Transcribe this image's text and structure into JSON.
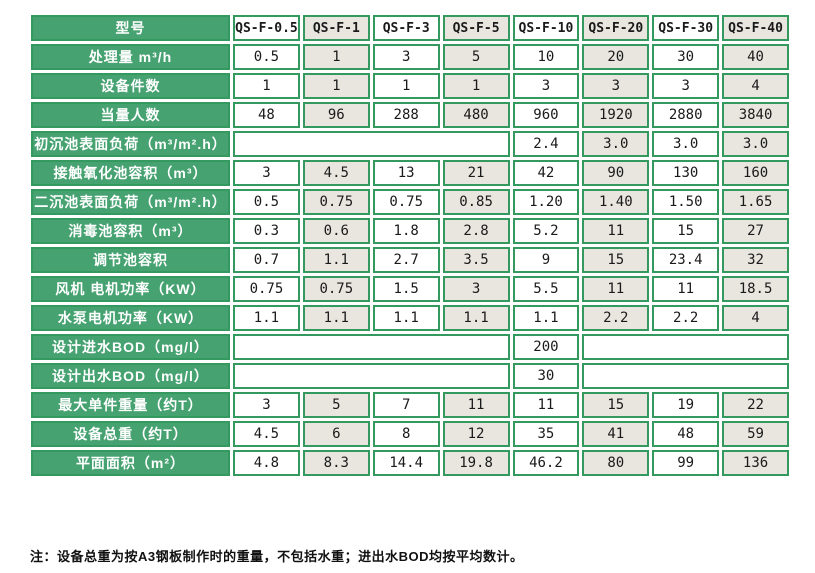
{
  "colors": {
    "green_fill": "#46a271",
    "green_border": "#33995e",
    "beige_cell": "#e9e6df",
    "white_cell": "#ffffff",
    "label_text": "#ffffff",
    "value_text": "#1a1a1a"
  },
  "table": {
    "header_label": "型号",
    "models": [
      "QS-F-0.5",
      "QS-F-1",
      "QS-F-3",
      "QS-F-5",
      "QS-F-10",
      "QS-F-20",
      "QS-F-30",
      "QS-F-40"
    ],
    "rows": [
      {
        "label": "处理量 m³/h",
        "cells": [
          {
            "t": "0.5"
          },
          {
            "t": "1"
          },
          {
            "t": "3"
          },
          {
            "t": "5"
          },
          {
            "t": "10"
          },
          {
            "t": "20"
          },
          {
            "t": "30"
          },
          {
            "t": "40"
          }
        ]
      },
      {
        "label": "设备件数",
        "cells": [
          {
            "t": "1"
          },
          {
            "t": "1"
          },
          {
            "t": "1"
          },
          {
            "t": "1"
          },
          {
            "t": "3"
          },
          {
            "t": "3"
          },
          {
            "t": "3"
          },
          {
            "t": "4"
          }
        ]
      },
      {
        "label": "当量人数",
        "cells": [
          {
            "t": "48"
          },
          {
            "t": "96"
          },
          {
            "t": "288"
          },
          {
            "t": "480"
          },
          {
            "t": "960"
          },
          {
            "t": "1920"
          },
          {
            "t": "2880"
          },
          {
            "t": "3840"
          }
        ]
      },
      {
        "label": "初沉池表面负荷（m³/m².h）",
        "cells": [
          {
            "t": "",
            "span": 4
          },
          {
            "t": "2.4"
          },
          {
            "t": "3.0"
          },
          {
            "t": "3.0"
          },
          {
            "t": "3.0"
          }
        ]
      },
      {
        "label": "接触氧化池容积（m³）",
        "cells": [
          {
            "t": "3"
          },
          {
            "t": "4.5"
          },
          {
            "t": "13"
          },
          {
            "t": "21"
          },
          {
            "t": "42"
          },
          {
            "t": "90"
          },
          {
            "t": "130"
          },
          {
            "t": "160"
          }
        ]
      },
      {
        "label": "二沉池表面负荷（m³/m².h）",
        "cells": [
          {
            "t": "0.5"
          },
          {
            "t": "0.75"
          },
          {
            "t": "0.75"
          },
          {
            "t": "0.85"
          },
          {
            "t": "1.20"
          },
          {
            "t": "1.40"
          },
          {
            "t": "1.50"
          },
          {
            "t": "1.65"
          }
        ]
      },
      {
        "label": "消毒池容积（m³）",
        "cells": [
          {
            "t": "0.3"
          },
          {
            "t": "0.6"
          },
          {
            "t": "1.8"
          },
          {
            "t": "2.8"
          },
          {
            "t": "5.2"
          },
          {
            "t": "11"
          },
          {
            "t": "15"
          },
          {
            "t": "27"
          }
        ]
      },
      {
        "label": "调节池容积",
        "cells": [
          {
            "t": "0.7"
          },
          {
            "t": "1.1"
          },
          {
            "t": "2.7"
          },
          {
            "t": "3.5"
          },
          {
            "t": "9"
          },
          {
            "t": "15"
          },
          {
            "t": "23.4"
          },
          {
            "t": "32"
          }
        ]
      },
      {
        "label": "风机 电机功率（KW）",
        "cells": [
          {
            "t": "0.75"
          },
          {
            "t": "0.75"
          },
          {
            "t": "1.5"
          },
          {
            "t": "3"
          },
          {
            "t": "5.5"
          },
          {
            "t": "11"
          },
          {
            "t": "11"
          },
          {
            "t": "18.5"
          }
        ]
      },
      {
        "label": "水泵电机功率（KW）",
        "cells": [
          {
            "t": "1.1"
          },
          {
            "t": "1.1"
          },
          {
            "t": "1.1"
          },
          {
            "t": "1.1"
          },
          {
            "t": "1.1"
          },
          {
            "t": "2.2"
          },
          {
            "t": "2.2"
          },
          {
            "t": "4"
          }
        ]
      },
      {
        "label": "设计进水BOD（mg/l）",
        "cells": [
          {
            "t": "",
            "span": 4
          },
          {
            "t": "200"
          },
          {
            "t": "",
            "span": 3
          }
        ]
      },
      {
        "label": "设计出水BOD（mg/l）",
        "cells": [
          {
            "t": "",
            "span": 4
          },
          {
            "t": "30"
          },
          {
            "t": "",
            "span": 3
          }
        ]
      },
      {
        "label": "最大单件重量（约T）",
        "cells": [
          {
            "t": "3"
          },
          {
            "t": "5"
          },
          {
            "t": "7"
          },
          {
            "t": "11"
          },
          {
            "t": "11"
          },
          {
            "t": "15"
          },
          {
            "t": "19"
          },
          {
            "t": "22"
          }
        ]
      },
      {
        "label": "设备总重（约T）",
        "cells": [
          {
            "t": "4.5"
          },
          {
            "t": "6"
          },
          {
            "t": "8"
          },
          {
            "t": "12"
          },
          {
            "t": "35"
          },
          {
            "t": "41"
          },
          {
            "t": "48"
          },
          {
            "t": "59"
          }
        ]
      },
      {
        "label": "平面面积（m²）",
        "cells": [
          {
            "t": "4.8"
          },
          {
            "t": "8.3"
          },
          {
            "t": "14.4"
          },
          {
            "t": "19.8"
          },
          {
            "t": "46.2"
          },
          {
            "t": "80"
          },
          {
            "t": "99"
          },
          {
            "t": "136"
          }
        ]
      }
    ]
  },
  "footnote": "注：设备总重为按A3钢板制作时的重量，不包括水重；进出水BOD均按平均数计。"
}
